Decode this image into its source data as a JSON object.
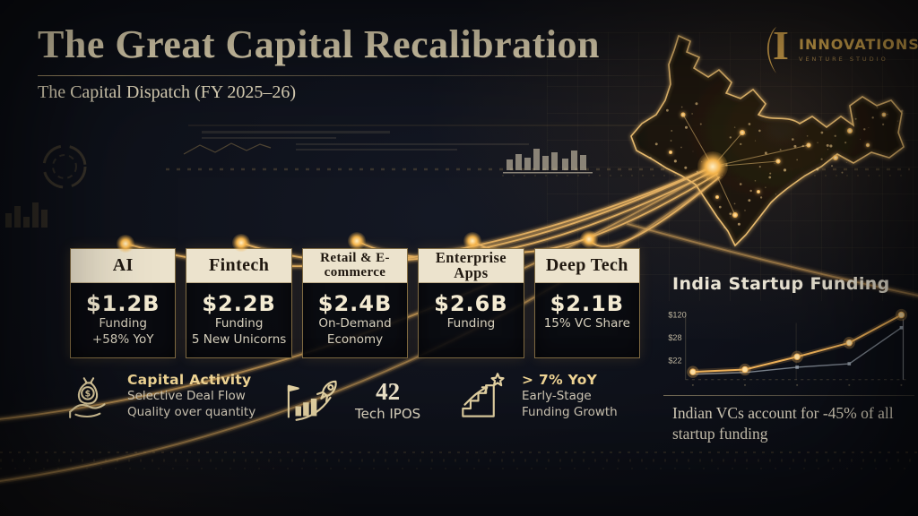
{
  "header": {
    "title": "The Great Capital Recalibration",
    "subtitle": "The Capital Dispatch (FY 2025–26)"
  },
  "logo": {
    "monogram": "I",
    "name": "INNOVATIONS",
    "tagline": "VENTURE STUDIO"
  },
  "colors": {
    "background": "#0a0c12",
    "gold_accent": "#d5a84e",
    "bright_gold": "#f6c878",
    "cream_text": "#ecdfbc",
    "card_header_bg": "#ece3cd"
  },
  "cards": [
    {
      "category": "AI",
      "value": "$1.2B",
      "line1": "Funding",
      "line2": "+58% YoY"
    },
    {
      "category": "Fintech",
      "value": "$2.2B",
      "line1": "Funding",
      "line2": "5 New Unicorns"
    },
    {
      "category": "Retail & E-commerce",
      "value": "$2.4B",
      "line1": "On-Demand",
      "line2": "Economy"
    },
    {
      "category": "Enterprise Apps",
      "value": "$2.6B",
      "line1": "Funding",
      "line2": ""
    },
    {
      "category": "Deep Tech",
      "value": "$2.1B",
      "line1": "15% VC Share",
      "line2": ""
    }
  ],
  "stats": [
    {
      "icon": "money-bag-hand-icon",
      "icon_glyph": "$",
      "title": "Capital Activity",
      "line1": "Selective Deal Flow",
      "line2": "Quality over quantity"
    },
    {
      "icon": "ipo-rocket-icon",
      "value": "42",
      "label": "Tech IPOS"
    },
    {
      "icon": "growth-stairs-icon",
      "title": "> 7% YoY",
      "line1": "Early-Stage",
      "line2": "Funding Growth"
    }
  ],
  "panel": {
    "title": "India Startup Funding",
    "note": "Indian VCs account for -45% of all startup funding"
  },
  "chart_data": {
    "type": "line",
    "title": "India Startup Funding",
    "yticks": [
      "$120",
      "$28",
      "$22"
    ],
    "ylim": [
      15,
      125
    ],
    "series": [
      {
        "name": "primary-funding-line",
        "color": "#f2b45a",
        "values": [
          22,
          26,
          48,
          72,
          120
        ]
      },
      {
        "name": "secondary-funding-line",
        "color": "#97a0ab",
        "values": [
          18,
          21,
          30,
          36,
          98
        ]
      }
    ],
    "x_tick_labels_visible": false,
    "legend": "none",
    "grid": "faint"
  }
}
